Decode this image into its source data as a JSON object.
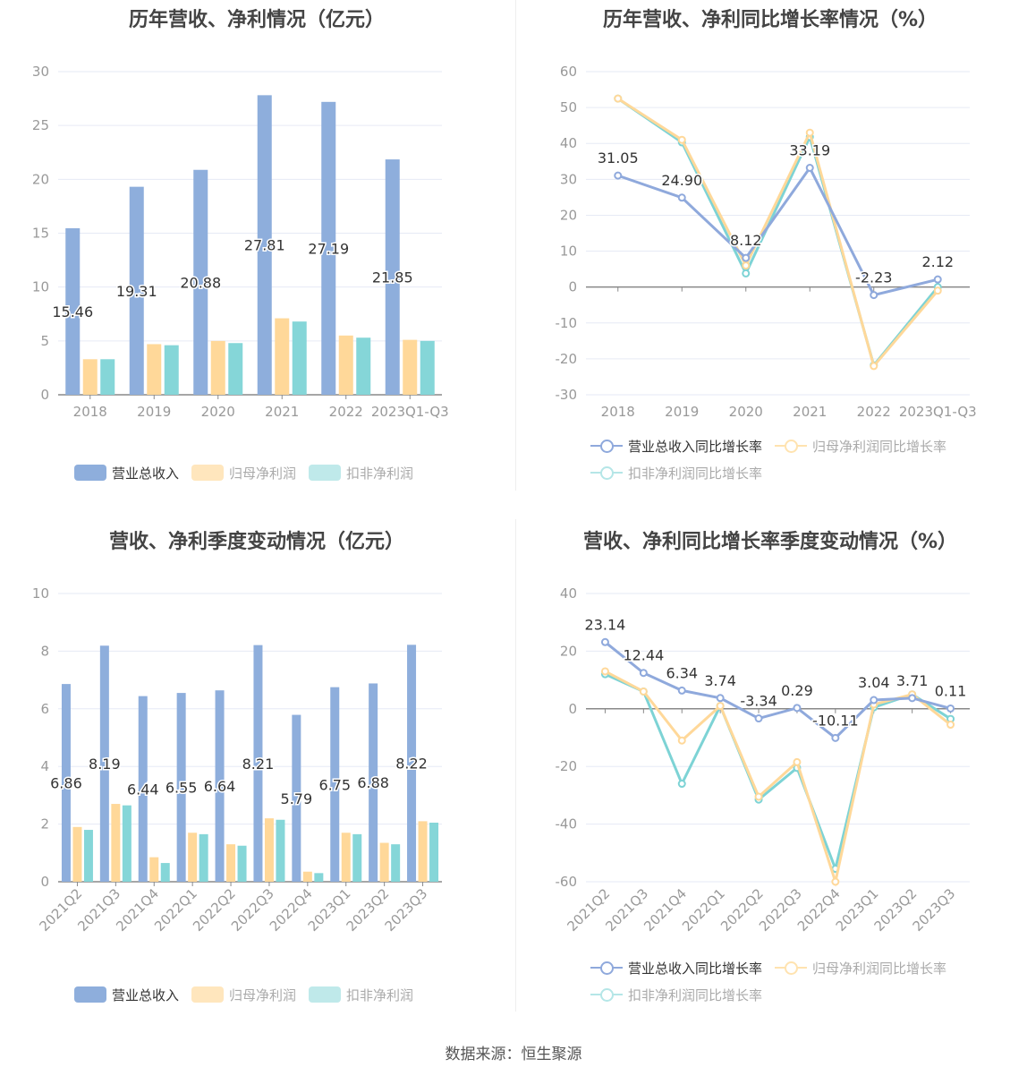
{
  "colors": {
    "revenue": "#8eaedc",
    "net": "#ffd899",
    "deducted": "#85d6d8"
  },
  "footer": "数据来源：恒生聚源",
  "chart_data": [
    {
      "type": "bar",
      "title": "历年营收、净利情况（亿元）",
      "categories": [
        "2018",
        "2019",
        "2020",
        "2021",
        "2022",
        "2023Q1-Q3"
      ],
      "ylim": [
        0,
        30
      ],
      "yticks": [
        0,
        5,
        10,
        15,
        20,
        25,
        30
      ],
      "series": [
        {
          "name": "营业总收入",
          "values": [
            15.46,
            19.31,
            20.88,
            27.81,
            27.19,
            21.85
          ],
          "labels": [
            "15.46",
            "19.31",
            "20.88",
            "27.81",
            "27.19",
            "21.85"
          ]
        },
        {
          "name": "归母净利润",
          "values": [
            3.3,
            4.7,
            5.0,
            7.1,
            5.5,
            5.1
          ]
        },
        {
          "name": "扣非净利润",
          "values": [
            3.3,
            4.6,
            4.8,
            6.8,
            5.3,
            5.0
          ]
        }
      ],
      "legend": "bottom"
    },
    {
      "type": "line",
      "title": "历年营收、净利同比增长率情况（%）",
      "categories": [
        "2018",
        "2019",
        "2020",
        "2021",
        "2022",
        "2023Q1-Q3"
      ],
      "ylim": [
        -30,
        60
      ],
      "yticks": [
        -30,
        -20,
        -10,
        0,
        10,
        20,
        30,
        40,
        50,
        60
      ],
      "series": [
        {
          "name": "营业总收入同比增长率",
          "values": [
            31.05,
            24.9,
            8.12,
            33.19,
            -2.23,
            2.12
          ],
          "labels": [
            "31.05",
            "24.90",
            "8.12",
            "33.19",
            "-2.23",
            "2.12"
          ]
        },
        {
          "name": "归母净利润同比增长率",
          "values": [
            52.5,
            41.0,
            6.0,
            43.0,
            -22.0,
            -1.0
          ]
        },
        {
          "name": "扣非净利润同比增长率",
          "values": [
            52.5,
            40.3,
            3.8,
            41.8,
            -21.8,
            0.0
          ]
        }
      ],
      "legend": "bottom"
    },
    {
      "type": "bar",
      "title": "营收、净利季度变动情况（亿元）",
      "categories": [
        "2021Q2",
        "2021Q3",
        "2021Q4",
        "2022Q1",
        "2022Q2",
        "2022Q3",
        "2022Q4",
        "2023Q1",
        "2023Q2",
        "2023Q3"
      ],
      "ylim": [
        0,
        10
      ],
      "yticks": [
        0,
        2,
        4,
        6,
        8,
        10
      ],
      "series": [
        {
          "name": "营业总收入",
          "values": [
            6.86,
            8.19,
            6.44,
            6.55,
            6.64,
            8.21,
            5.79,
            6.75,
            6.88,
            8.22
          ],
          "labels": [
            "6.86",
            "8.19",
            "6.44",
            "6.55",
            "6.64",
            "8.21",
            "5.79",
            "6.75",
            "6.88",
            "8.22"
          ]
        },
        {
          "name": "归母净利润",
          "values": [
            1.9,
            2.7,
            0.85,
            1.7,
            1.3,
            2.2,
            0.35,
            1.7,
            1.35,
            2.1
          ]
        },
        {
          "name": "扣非净利润",
          "values": [
            1.8,
            2.65,
            0.65,
            1.65,
            1.25,
            2.15,
            0.3,
            1.65,
            1.3,
            2.05
          ]
        }
      ],
      "legend": "bottom"
    },
    {
      "type": "line",
      "title": "营收、净利同比增长率季度变动情况（%）",
      "categories": [
        "2021Q2",
        "2021Q3",
        "2021Q4",
        "2022Q1",
        "2022Q2",
        "2022Q3",
        "2022Q4",
        "2023Q1",
        "2023Q2",
        "2023Q3"
      ],
      "ylim": [
        -60,
        40
      ],
      "yticks": [
        -60,
        -40,
        -20,
        0,
        20,
        40
      ],
      "series": [
        {
          "name": "营业总收入同比增长率",
          "values": [
            23.14,
            12.44,
            6.34,
            3.74,
            -3.34,
            0.29,
            -10.11,
            3.04,
            3.71,
            0.11
          ],
          "labels": [
            "23.14",
            "12.44",
            "6.34",
            "3.74",
            "-3.34",
            "0.29",
            "-10.11",
            "3.04",
            "3.71",
            "0.11"
          ]
        },
        {
          "name": "归母净利润同比增长率",
          "values": [
            13.0,
            6.0,
            -11.0,
            1.0,
            -30.5,
            -18.5,
            -60.0,
            1.5,
            5.0,
            -5.5
          ]
        },
        {
          "name": "扣非净利润同比增长率",
          "values": [
            12.0,
            6.0,
            -26.0,
            1.0,
            -31.5,
            -20.5,
            -55.5,
            0.5,
            5.0,
            -3.5
          ]
        }
      ],
      "legend": "bottom"
    }
  ]
}
